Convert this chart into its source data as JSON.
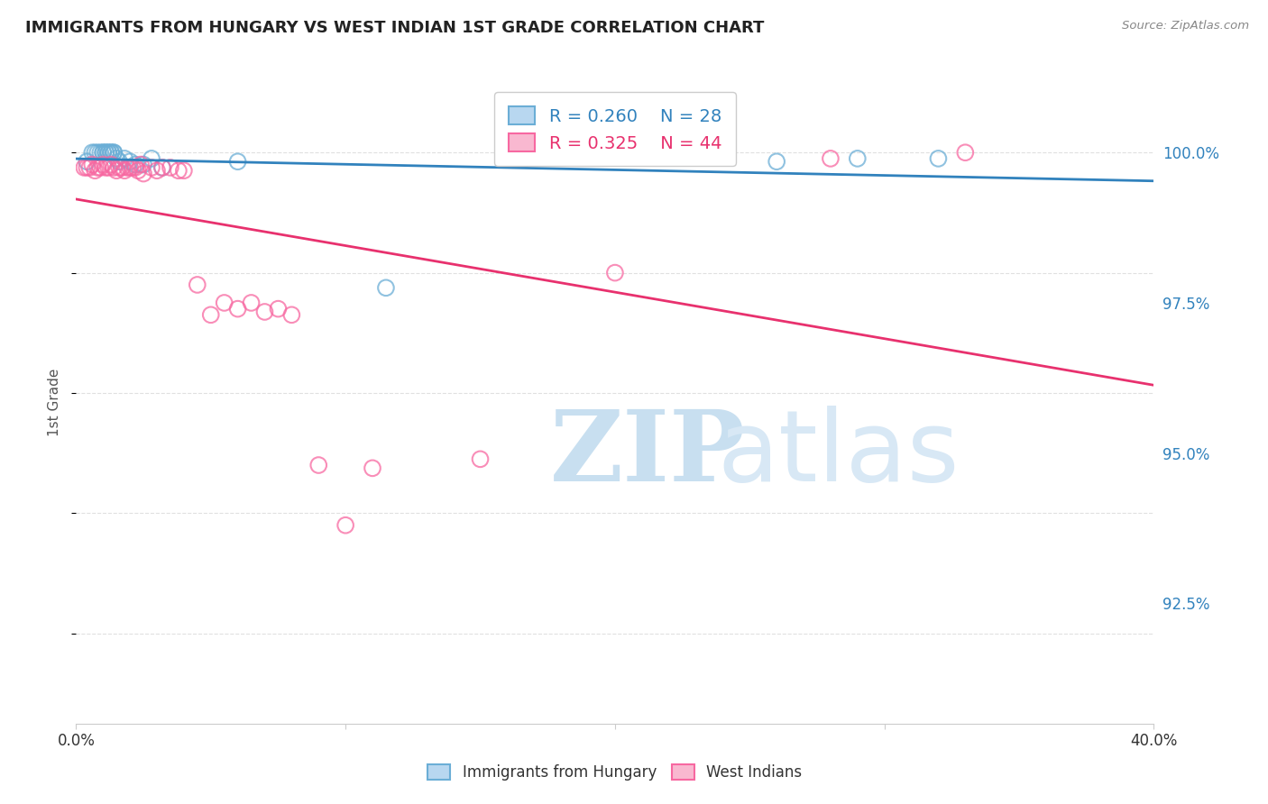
{
  "title": "IMMIGRANTS FROM HUNGARY VS WEST INDIAN 1ST GRADE CORRELATION CHART",
  "source": "Source: ZipAtlas.com",
  "ylabel": "1st Grade",
  "ytick_labels": [
    "100.0%",
    "97.5%",
    "95.0%",
    "92.5%"
  ],
  "ytick_values": [
    1.0,
    0.975,
    0.95,
    0.925
  ],
  "xlim": [
    0.0,
    0.4
  ],
  "ylim": [
    0.905,
    1.012
  ],
  "legend_blue_r": "R = 0.260",
  "legend_blue_n": "N = 28",
  "legend_pink_r": "R = 0.325",
  "legend_pink_n": "N = 44",
  "blue_color": "#6baed6",
  "pink_color": "#f768a1",
  "blue_line_color": "#3182bd",
  "pink_line_color": "#e8316e",
  "watermark_zip_color": "#c8dff0",
  "watermark_atlas_color": "#d8e8f5",
  "blue_points_x": [
    0.004,
    0.006,
    0.007,
    0.008,
    0.009,
    0.01,
    0.01,
    0.011,
    0.011,
    0.012,
    0.012,
    0.013,
    0.013,
    0.014,
    0.014,
    0.015,
    0.016,
    0.018,
    0.02,
    0.022,
    0.025,
    0.028,
    0.032,
    0.06,
    0.115,
    0.26,
    0.29,
    0.32
  ],
  "blue_points_y": [
    0.9985,
    1.0,
    1.0,
    1.0,
    1.0,
    1.0,
    1.0,
    1.0,
    1.0,
    1.0,
    1.0,
    1.0,
    1.0,
    1.0,
    1.0,
    0.999,
    0.9985,
    0.999,
    0.9985,
    0.998,
    0.998,
    0.999,
    0.9975,
    0.9985,
    0.9775,
    0.9985,
    0.999,
    0.999
  ],
  "pink_points_x": [
    0.003,
    0.004,
    0.005,
    0.006,
    0.007,
    0.008,
    0.009,
    0.01,
    0.011,
    0.012,
    0.013,
    0.014,
    0.015,
    0.016,
    0.017,
    0.018,
    0.019,
    0.02,
    0.021,
    0.022,
    0.023,
    0.024,
    0.025,
    0.028,
    0.03,
    0.032,
    0.035,
    0.038,
    0.04,
    0.045,
    0.05,
    0.055,
    0.06,
    0.065,
    0.07,
    0.075,
    0.08,
    0.09,
    0.1,
    0.11,
    0.15,
    0.2,
    0.28,
    0.33
  ],
  "pink_points_y": [
    0.9975,
    0.9975,
    0.9975,
    0.998,
    0.997,
    0.9975,
    0.9975,
    0.998,
    0.9975,
    0.9975,
    0.998,
    0.9975,
    0.997,
    0.9975,
    0.9975,
    0.997,
    0.9975,
    0.9975,
    0.9975,
    0.9975,
    0.997,
    0.998,
    0.9965,
    0.9975,
    0.997,
    0.9975,
    0.9975,
    0.997,
    0.997,
    0.978,
    0.973,
    0.975,
    0.974,
    0.975,
    0.9735,
    0.974,
    0.973,
    0.948,
    0.938,
    0.9475,
    0.949,
    0.98,
    0.999,
    1.0
  ],
  "background_color": "#ffffff",
  "grid_color": "#e0e0e0"
}
